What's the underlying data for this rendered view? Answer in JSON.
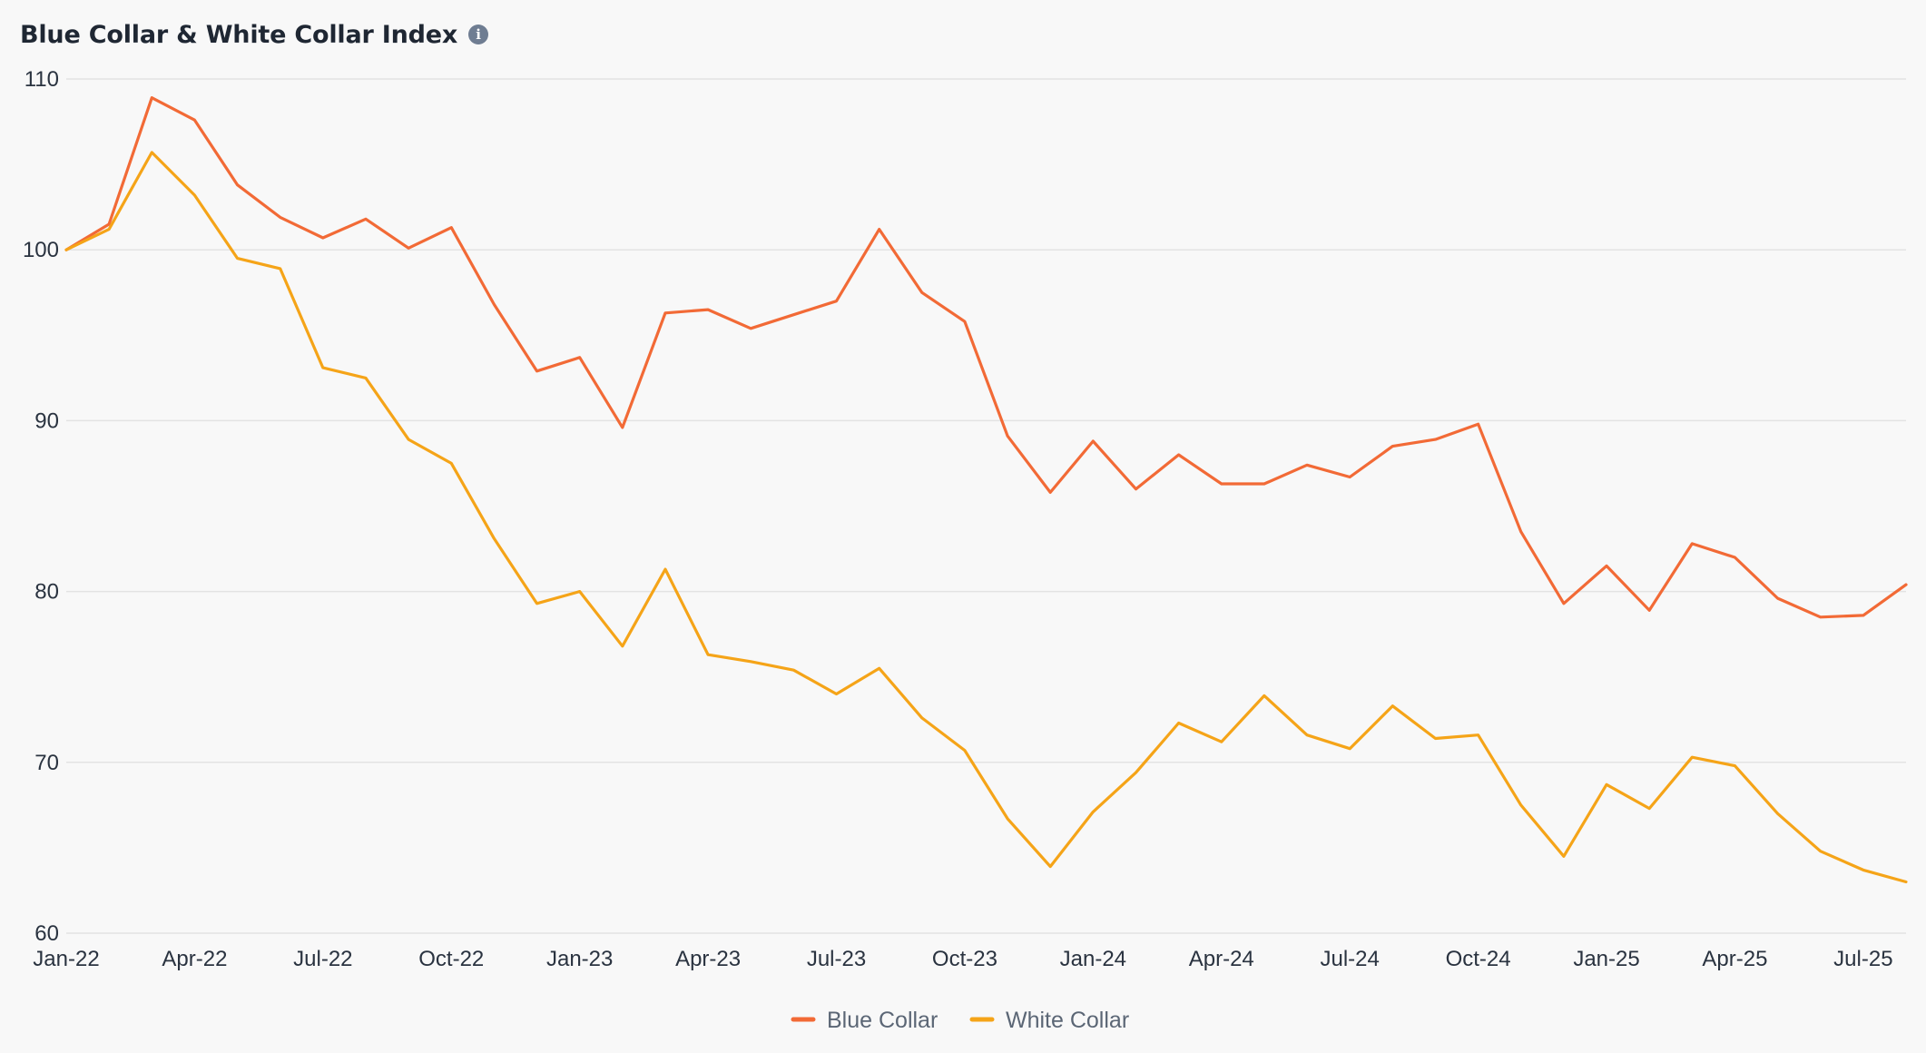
{
  "header": {
    "title": "Blue Collar & White Collar Index",
    "info_icon": "info-icon",
    "info_glyph": "i"
  },
  "colors": {
    "background": "#f8f8f8",
    "grid": "#e3e3e3",
    "blue_collar": "#f26a36",
    "white_collar": "#f5a418"
  },
  "chart_data": {
    "type": "line",
    "title": "Blue Collar & White Collar Index",
    "xlabel": "",
    "ylabel": "",
    "ylim": [
      60,
      110
    ],
    "yticks": [
      60,
      70,
      80,
      90,
      100,
      110
    ],
    "grid": true,
    "legend_position": "bottom-center",
    "x_tick_labels": [
      "Jan-22",
      "Apr-22",
      "Jul-22",
      "Oct-22",
      "Jan-23",
      "Apr-23",
      "Jul-23",
      "Oct-23",
      "Jan-24",
      "Apr-24",
      "Jul-24",
      "Oct-24",
      "Jan-25",
      "Apr-25",
      "Jul-25"
    ],
    "x": [
      "2022-01",
      "2022-02",
      "2022-03",
      "2022-04",
      "2022-05",
      "2022-06",
      "2022-07",
      "2022-08",
      "2022-09",
      "2022-10",
      "2022-11",
      "2022-12",
      "2023-01",
      "2023-02",
      "2023-03",
      "2023-04",
      "2023-05",
      "2023-06",
      "2023-07",
      "2023-08",
      "2023-09",
      "2023-10",
      "2023-11",
      "2023-12",
      "2024-01",
      "2024-02",
      "2024-03",
      "2024-04",
      "2024-05",
      "2024-06",
      "2024-07",
      "2024-08",
      "2024-09",
      "2024-10",
      "2024-11",
      "2024-12",
      "2025-01",
      "2025-02",
      "2025-03",
      "2025-04",
      "2025-05",
      "2025-06",
      "2025-07",
      "2025-08"
    ],
    "series": [
      {
        "name": "Blue Collar",
        "color": "#f26a36",
        "values": [
          100,
          101.5,
          108.9,
          107.6,
          103.8,
          101.9,
          100.7,
          101.8,
          100.1,
          101.3,
          96.8,
          92.9,
          93.7,
          89.6,
          96.3,
          96.5,
          95.4,
          96.2,
          97.0,
          101.2,
          97.5,
          95.8,
          89.1,
          85.8,
          88.8,
          86.0,
          88.0,
          86.3,
          86.3,
          87.4,
          86.7,
          88.5,
          88.9,
          89.8,
          83.5,
          79.3,
          81.5,
          78.9,
          82.8,
          82.0,
          79.6,
          78.5,
          78.6,
          80.4
        ]
      },
      {
        "name": "White Collar",
        "color": "#f5a418",
        "values": [
          100,
          101.2,
          105.7,
          103.2,
          99.5,
          98.9,
          93.1,
          92.5,
          88.9,
          87.5,
          83.1,
          79.3,
          80.0,
          76.8,
          81.3,
          76.3,
          75.9,
          75.4,
          74.0,
          75.5,
          72.6,
          70.7,
          66.7,
          63.9,
          67.1,
          69.4,
          72.3,
          71.2,
          73.9,
          71.6,
          70.8,
          73.3,
          71.4,
          71.6,
          67.5,
          64.5,
          68.7,
          67.3,
          70.3,
          69.8,
          67.0,
          64.8,
          63.7,
          63.0
        ]
      }
    ]
  }
}
